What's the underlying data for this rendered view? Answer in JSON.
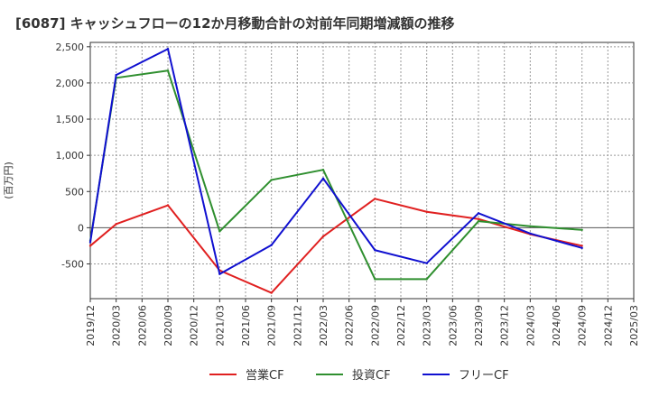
{
  "chart_data": {
    "type": "line",
    "title": "[6087]  キャッシュフローの12か月移動合計の対前年同期増減額の推移",
    "ylabel": "(百万円)",
    "xlabel": "",
    "ylim": [
      -980,
      2560
    ],
    "yticks": [
      -500,
      0,
      500,
      1000,
      1500,
      2000,
      2500
    ],
    "ytick_labels": [
      "-500",
      "0",
      "500",
      "1,000",
      "1,500",
      "2,000",
      "2,500"
    ],
    "x_tick_labels": [
      "2019/12",
      "2020/03",
      "2020/06",
      "2020/09",
      "2020/12",
      "2021/03",
      "2021/06",
      "2021/09",
      "2021/12",
      "2022/03",
      "2022/06",
      "2022/09",
      "2022/12",
      "2023/03",
      "2023/06",
      "2023/09",
      "2023/12",
      "2024/03",
      "2024/06",
      "2024/09",
      "2024/12",
      "2025/03"
    ],
    "grid": true,
    "legend_position": "bottom-center",
    "series": [
      {
        "name": "営業CF",
        "color": "#e02020",
        "points": [
          {
            "x": 0,
            "y": -250
          },
          {
            "x": 1,
            "y": 50
          },
          {
            "x": 3,
            "y": 310
          },
          {
            "x": 5,
            "y": -590
          },
          {
            "x": 7,
            "y": -900
          },
          {
            "x": 9,
            "y": -120
          },
          {
            "x": 11,
            "y": 400
          },
          {
            "x": 13,
            "y": 220
          },
          {
            "x": 15,
            "y": 120
          },
          {
            "x": 17,
            "y": -90
          },
          {
            "x": 19,
            "y": -250
          }
        ]
      },
      {
        "name": "投資CF",
        "color": "#2f8f2f",
        "points": [
          {
            "x": 0,
            "y": -180
          },
          {
            "x": 1,
            "y": 2070
          },
          {
            "x": 3,
            "y": 2170
          },
          {
            "x": 5,
            "y": -50
          },
          {
            "x": 7,
            "y": 660
          },
          {
            "x": 9,
            "y": 800
          },
          {
            "x": 11,
            "y": -710
          },
          {
            "x": 13,
            "y": -710
          },
          {
            "x": 15,
            "y": 90
          },
          {
            "x": 17,
            "y": 20
          },
          {
            "x": 19,
            "y": -30
          }
        ]
      },
      {
        "name": "フリーCF",
        "color": "#1010d0",
        "points": [
          {
            "x": 0,
            "y": -200
          },
          {
            "x": 1,
            "y": 2110
          },
          {
            "x": 3,
            "y": 2470
          },
          {
            "x": 5,
            "y": -640
          },
          {
            "x": 7,
            "y": -240
          },
          {
            "x": 9,
            "y": 680
          },
          {
            "x": 11,
            "y": -310
          },
          {
            "x": 13,
            "y": -490
          },
          {
            "x": 15,
            "y": 200
          },
          {
            "x": 17,
            "y": -80
          },
          {
            "x": 19,
            "y": -280
          }
        ]
      }
    ]
  }
}
